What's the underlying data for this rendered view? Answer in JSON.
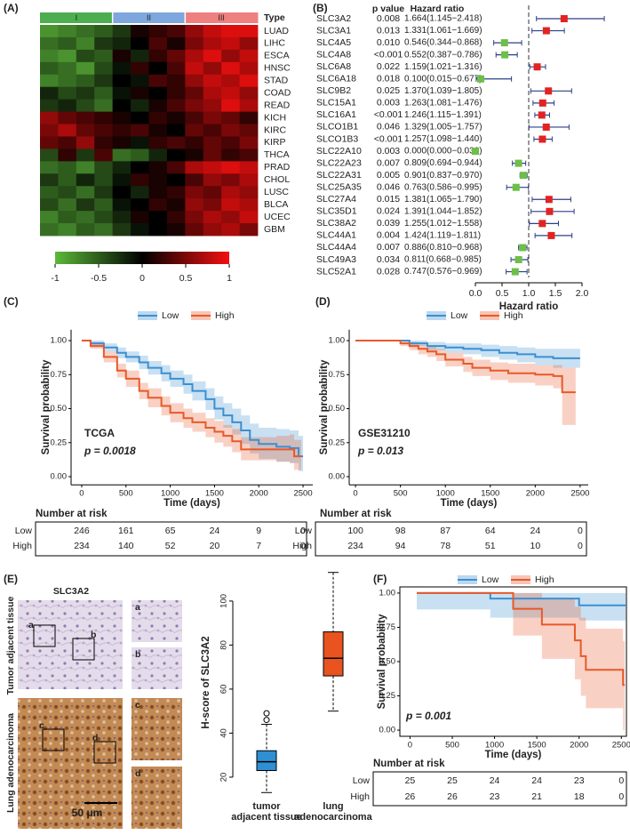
{
  "chart_data": [
    {
      "type": "heatmap",
      "panel": "(A)",
      "legend_title": "Type",
      "groups": [
        "I",
        "II",
        "III"
      ],
      "group_colors": [
        "#4cae4f",
        "#7ea7de",
        "#ef8080"
      ],
      "column_groups": [
        "I",
        "I",
        "I",
        "I",
        "II",
        "II",
        "II",
        "II",
        "III",
        "III",
        "III",
        "III"
      ],
      "rows": [
        "LUAD",
        "LIHC",
        "ESCA",
        "HNSC",
        "STAD",
        "COAD",
        "READ",
        "KICH",
        "KIRC",
        "KIRP",
        "THCA",
        "PRAD",
        "CHOL",
        "LUSC",
        "BLCA",
        "UCEC",
        "GBM"
      ],
      "highlight_index": 0,
      "highlight_color": "#e32222",
      "values": [
        [
          -0.8,
          -0.7,
          -0.6,
          -0.5,
          -0.3,
          0.1,
          0.2,
          0.3,
          0.6,
          0.8,
          0.9,
          0.9
        ],
        [
          -0.6,
          -0.5,
          -0.7,
          -0.3,
          -0.2,
          0.0,
          0.3,
          0.1,
          0.5,
          0.7,
          0.8,
          0.6
        ],
        [
          -0.7,
          -0.8,
          -0.4,
          -0.5,
          0.1,
          -0.2,
          0.2,
          0.4,
          0.7,
          0.9,
          0.6,
          0.8
        ],
        [
          -0.5,
          -0.6,
          -0.8,
          -0.4,
          -0.1,
          0.2,
          0.0,
          0.3,
          0.8,
          0.6,
          0.9,
          0.7
        ],
        [
          -0.7,
          -0.6,
          -0.5,
          -0.3,
          0.0,
          -0.1,
          0.3,
          0.2,
          0.6,
          0.8,
          0.7,
          0.9
        ],
        [
          -0.2,
          -0.4,
          -0.3,
          -0.5,
          -0.1,
          0.1,
          0.0,
          0.2,
          0.4,
          0.7,
          0.8,
          0.6
        ],
        [
          -0.3,
          -0.2,
          -0.4,
          -0.6,
          0.0,
          -0.2,
          0.1,
          0.3,
          0.5,
          0.6,
          0.9,
          0.7
        ],
        [
          0.6,
          0.4,
          0.3,
          0.2,
          0.1,
          0.0,
          0.2,
          0.1,
          0.3,
          0.5,
          0.4,
          0.2
        ],
        [
          0.5,
          0.7,
          0.4,
          0.3,
          0.2,
          0.3,
          0.1,
          0.0,
          0.4,
          0.3,
          0.5,
          0.4
        ],
        [
          0.4,
          0.3,
          0.6,
          0.2,
          0.1,
          -0.1,
          0.2,
          0.3,
          0.2,
          0.4,
          0.3,
          0.5
        ],
        [
          -0.4,
          0.2,
          -0.3,
          0.3,
          -0.6,
          -0.5,
          -0.2,
          0.0,
          0.1,
          0.4,
          0.2,
          0.3
        ],
        [
          -0.6,
          -0.5,
          -0.7,
          -0.4,
          -0.2,
          0.0,
          0.1,
          0.3,
          0.7,
          0.8,
          0.9,
          0.8
        ],
        [
          -0.3,
          -0.5,
          -0.2,
          -0.4,
          -0.1,
          0.2,
          0.1,
          0.0,
          0.3,
          0.6,
          0.5,
          0.7
        ],
        [
          -0.5,
          -0.4,
          -0.6,
          -0.3,
          0.0,
          -0.2,
          0.1,
          0.2,
          0.5,
          0.4,
          0.7,
          0.6
        ],
        [
          -0.4,
          -0.6,
          -0.3,
          -0.5,
          -0.1,
          0.0,
          0.2,
          0.1,
          0.6,
          0.5,
          0.8,
          0.7
        ],
        [
          -0.7,
          -0.5,
          -0.6,
          -0.4,
          -0.2,
          0.1,
          0.0,
          0.2,
          0.5,
          0.7,
          0.6,
          0.8
        ],
        [
          -0.6,
          -0.7,
          -0.5,
          -0.6,
          -0.3,
          -0.1,
          0.0,
          0.1,
          0.4,
          0.6,
          0.7,
          0.5
        ]
      ],
      "colorscale": [
        "#5cb83a",
        "#000000",
        "#f41010"
      ],
      "zlim": [
        -1,
        1
      ],
      "colorbar_ticks": [
        -1,
        -0.5,
        0,
        0.5,
        1
      ]
    },
    {
      "type": "forest",
      "panel": "(B)",
      "p_header": "p value",
      "hr_header": "Hazard ratio",
      "genes": [
        "SLC3A2",
        "SLC3A1",
        "SLC4A5",
        "SLC4A8",
        "SLC6A8",
        "SLC6A18",
        "SLC9B2",
        "SLC15A1",
        "SLC16A1",
        "SLCO1B1",
        "SLCO1B3",
        "SLC22A10",
        "SLC22A23",
        "SLC22A31",
        "SLC25A35",
        "SLC27A4",
        "SLC35D1",
        "SLC38A2",
        "SLC44A1",
        "SLC44A4",
        "SLC49A3",
        "SLC52A1"
      ],
      "highlight_index": 0,
      "highlight_color": "#e32222",
      "p_values": [
        "0.008",
        "0.013",
        "0.010",
        "<0.001",
        "0.022",
        "0.018",
        "0.025",
        "0.003",
        "<0.001",
        "0.046",
        "<0.001",
        "0.003",
        "0.007",
        "0.005",
        "0.046",
        "0.015",
        "0.024",
        "0.039",
        "0.004",
        "0.007",
        "0.034",
        "0.028"
      ],
      "hr": [
        1.664,
        1.331,
        0.546,
        0.552,
        1.159,
        0.1,
        1.37,
        1.263,
        1.246,
        1.329,
        1.257,
        0.0,
        0.809,
        0.901,
        0.763,
        1.381,
        1.391,
        1.255,
        1.424,
        0.886,
        0.811,
        0.747
      ],
      "lower": [
        1.145,
        1.061,
        0.344,
        0.387,
        1.021,
        0.015,
        1.039,
        1.081,
        1.115,
        1.005,
        1.098,
        0.0,
        0.694,
        0.837,
        0.586,
        1.065,
        1.044,
        1.012,
        1.119,
        0.81,
        0.668,
        0.576
      ],
      "upper": [
        2.418,
        1.669,
        0.868,
        0.786,
        1.316,
        0.677,
        1.805,
        1.476,
        1.391,
        1.757,
        1.44,
        0.036,
        0.944,
        0.97,
        0.995,
        1.79,
        1.852,
        1.558,
        1.811,
        0.968,
        0.985,
        0.969
      ],
      "hr_labels": [
        "1.664(1.145−2.418)",
        "1.331(1.061−1.669)",
        "0.546(0.344−0.868)",
        "0.552(0.387−0.786)",
        "1.159(1.021−1.316)",
        "0.100(0.015−0.677)",
        "1.370(1.039−1.805)",
        "1.263(1.081−1.476)",
        "1.246(1.115−1.391)",
        "1.329(1.005−1.757)",
        "1.257(1.098−1.440)",
        "0.000(0.000−0.036)",
        "0.809(0.694−0.944)",
        "0.901(0.837−0.970)",
        "0.763(0.586−0.995)",
        "1.381(1.065−1.790)",
        "1.391(1.044−1.852)",
        "1.255(1.012−1.558)",
        "1.424(1.119−1.811)",
        "0.886(0.810−0.968)",
        "0.811(0.668−0.985)",
        "0.747(0.576−0.969)"
      ],
      "reference": 1,
      "color_above": "#e32222",
      "color_below": "#6cbf47",
      "ci_color": "#2d3f86",
      "xlim": [
        -0.05,
        2.45
      ],
      "xticks": [
        {
          "value": 0,
          "label": "0.0"
        },
        {
          "value": 0.5,
          "label": "0.5"
        },
        {
          "value": 1,
          "label": "1.0"
        },
        {
          "value": 1.5,
          "label": "1.5"
        },
        {
          "value": 2,
          "label": "2.0"
        }
      ],
      "xlabel": "Hazard ratio"
    },
    {
      "type": "km",
      "panel": "(C)",
      "ylabel": "Survival probability",
      "xlabel": "Time (days)",
      "annotation": "TCGA",
      "p_text": "p = 0.0018",
      "frame": false,
      "xlim": [
        -120,
        2610
      ],
      "xticks": [
        0,
        500,
        1000,
        1500,
        2000,
        2500
      ],
      "ylim": [
        -0.06,
        1.08
      ],
      "yticks": [
        {
          "value": 0,
          "label": "0.00"
        },
        {
          "value": 0.25,
          "label": "0.25"
        },
        {
          "value": 0.5,
          "label": "0.50"
        },
        {
          "value": 0.75,
          "label": "0.75"
        },
        {
          "value": 1,
          "label": "1.00"
        }
      ],
      "series": [
        {
          "name": "Low",
          "color": "#3b8fd1",
          "x": [
            0,
            100,
            250,
            400,
            500,
            650,
            750,
            900,
            1000,
            1150,
            1250,
            1400,
            1500,
            1600,
            1700,
            1800,
            1900,
            2000,
            2200,
            2350,
            2450,
            2500
          ],
          "values": [
            1.0,
            0.98,
            0.95,
            0.91,
            0.88,
            0.84,
            0.8,
            0.76,
            0.72,
            0.68,
            0.63,
            0.57,
            0.5,
            0.45,
            0.4,
            0.34,
            0.27,
            0.24,
            0.22,
            0.21,
            0.15,
            0.15
          ],
          "lower": [
            1.0,
            0.96,
            0.92,
            0.87,
            0.84,
            0.79,
            0.75,
            0.7,
            0.66,
            0.61,
            0.56,
            0.49,
            0.42,
            0.36,
            0.31,
            0.24,
            0.17,
            0.13,
            0.11,
            0.1,
            0.04,
            0.04
          ],
          "upper": [
            1.0,
            1.0,
            0.98,
            0.95,
            0.92,
            0.89,
            0.85,
            0.82,
            0.78,
            0.75,
            0.7,
            0.65,
            0.59,
            0.54,
            0.5,
            0.45,
            0.39,
            0.36,
            0.35,
            0.34,
            0.3,
            0.3
          ]
        },
        {
          "name": "High",
          "color": "#e8592a",
          "x": [
            0,
            100,
            250,
            400,
            500,
            650,
            750,
            900,
            1000,
            1150,
            1250,
            1400,
            1500,
            1600,
            1700,
            1800,
            2000,
            2200,
            2350,
            2400,
            2480
          ],
          "values": [
            1.0,
            0.96,
            0.88,
            0.78,
            0.72,
            0.63,
            0.58,
            0.52,
            0.47,
            0.43,
            0.4,
            0.36,
            0.33,
            0.3,
            0.26,
            0.2,
            0.2,
            0.2,
            0.2,
            0.15,
            0.15
          ],
          "lower": [
            1.0,
            0.94,
            0.84,
            0.73,
            0.66,
            0.57,
            0.51,
            0.45,
            0.4,
            0.36,
            0.33,
            0.29,
            0.25,
            0.22,
            0.18,
            0.12,
            0.12,
            0.11,
            0.1,
            0.05,
            0.05
          ],
          "upper": [
            1.0,
            0.99,
            0.92,
            0.83,
            0.78,
            0.69,
            0.65,
            0.59,
            0.54,
            0.5,
            0.47,
            0.43,
            0.41,
            0.38,
            0.35,
            0.29,
            0.29,
            0.3,
            0.31,
            0.27,
            0.27
          ]
        }
      ],
      "risk_title": "Number at risk",
      "risk": [
        [
          246,
          161,
          65,
          24,
          9,
          0
        ],
        [
          234,
          140,
          52,
          20,
          7,
          0
        ]
      ]
    },
    {
      "type": "km",
      "panel": "(D)",
      "ylabel": "Survival probability",
      "xlabel": "Time (days)",
      "annotation": "GSE31210",
      "p_text": "p = 0.013",
      "frame": false,
      "xlim": [
        -70,
        2590
      ],
      "xticks": [
        0,
        500,
        1000,
        1500,
        2000,
        2500
      ],
      "ylim": [
        -0.06,
        1.08
      ],
      "yticks": [
        {
          "value": 0,
          "label": "0.00"
        },
        {
          "value": 0.25,
          "label": "0.25"
        },
        {
          "value": 0.5,
          "label": "0.50"
        },
        {
          "value": 0.75,
          "label": "0.75"
        },
        {
          "value": 1,
          "label": "1.00"
        }
      ],
      "series": [
        {
          "name": "Low",
          "color": "#3b8fd1",
          "x": [
            0,
            600,
            800,
            1000,
            1200,
            1400,
            1600,
            1800,
            2000,
            2200,
            2500
          ],
          "values": [
            1.0,
            0.98,
            0.96,
            0.95,
            0.94,
            0.93,
            0.91,
            0.9,
            0.88,
            0.87,
            0.87
          ],
          "lower": [
            1.0,
            0.96,
            0.93,
            0.91,
            0.9,
            0.88,
            0.86,
            0.84,
            0.82,
            0.8,
            0.8
          ],
          "upper": [
            1.0,
            1.0,
            0.99,
            0.98,
            0.98,
            0.97,
            0.96,
            0.95,
            0.94,
            0.94,
            0.94
          ]
        },
        {
          "name": "High",
          "color": "#e8592a",
          "x": [
            0,
            500,
            600,
            700,
            800,
            900,
            1000,
            1200,
            1300,
            1500,
            1700,
            2000,
            2200,
            2300,
            2450
          ],
          "values": [
            1.0,
            0.98,
            0.96,
            0.94,
            0.92,
            0.9,
            0.86,
            0.83,
            0.8,
            0.78,
            0.76,
            0.75,
            0.74,
            0.62,
            0.62
          ],
          "lower": [
            1.0,
            0.96,
            0.93,
            0.9,
            0.88,
            0.85,
            0.81,
            0.77,
            0.74,
            0.71,
            0.69,
            0.67,
            0.65,
            0.38,
            0.38
          ],
          "upper": [
            1.0,
            1.0,
            0.99,
            0.97,
            0.96,
            0.94,
            0.91,
            0.88,
            0.86,
            0.84,
            0.83,
            0.82,
            0.82,
            0.8,
            0.8
          ]
        }
      ],
      "risk_title": "Number at risk",
      "risk": [
        [
          100,
          98,
          87,
          64,
          24,
          0
        ],
        [
          234,
          94,
          78,
          51,
          10,
          0
        ]
      ]
    },
    {
      "type": "box",
      "panel": "(E)",
      "image_title": "SLC3A2",
      "image_rows": [
        "Tumor adjacent tissue",
        "Lung adenocarcinoma"
      ],
      "insets": [
        "a",
        "b",
        "c",
        "d"
      ],
      "scale_bar": "50 μm",
      "ylabel": "H-score of  SLC3A2",
      "ylim": [
        11.5,
        114.5
      ],
      "yticks": [
        20,
        40,
        60,
        80,
        100
      ],
      "categories": [
        [
          "tumor",
          "adjacent tissue"
        ],
        [
          "lung",
          "adenocarcinoma"
        ]
      ],
      "boxes": [
        {
          "min": 13,
          "q1": 23,
          "median": 27,
          "q3": 32,
          "max": 44,
          "outliers": [
            46,
            49
          ],
          "color": "#2f8fd3"
        },
        {
          "min": 50,
          "q1": 66,
          "median": 74,
          "q3": 86,
          "max": 113,
          "color": "#e8531f"
        }
      ]
    },
    {
      "type": "km",
      "panel": "(F)",
      "ylabel": "Survival probability",
      "xlabel": "Time (days)",
      "p_text": "p = 0.001",
      "frame": true,
      "xlim": [
        -120,
        2560
      ],
      "xticks": [
        0,
        500,
        1000,
        1500,
        2000,
        2500
      ],
      "ylim": [
        -0.045,
        1.045
      ],
      "yticks": [
        {
          "value": 0,
          "label": "0.00"
        },
        {
          "value": 0.25,
          "label": "0.25"
        },
        {
          "value": 0.5,
          "label": "0.50"
        },
        {
          "value": 0.75,
          "label": "0.75"
        },
        {
          "value": 1,
          "label": "1.00"
        }
      ],
      "series": [
        {
          "name": "Low",
          "color": "#3b8fd1",
          "x": [
            80,
            950,
            2000,
            2550
          ],
          "values": [
            1.0,
            0.96,
            0.91,
            0.91
          ],
          "lower": [
            0.88,
            0.82,
            0.8,
            0.8
          ],
          "upper": [
            1.0,
            1.0,
            1.0,
            1.0
          ]
        },
        {
          "name": "High",
          "color": "#e8592a",
          "x": [
            80,
            1220,
            1560,
            1950,
            2020,
            2080,
            2520,
            2540
          ],
          "values": [
            1.0,
            0.885,
            0.77,
            0.655,
            0.54,
            0.44,
            0.33,
            0.33
          ],
          "lower": [
            1.0,
            0.69,
            0.52,
            0.37,
            0.25,
            0.16,
            0.0,
            0.0
          ],
          "upper": [
            1.0,
            1.0,
            0.96,
            0.9,
            0.82,
            0.74,
            0.65,
            0.65
          ]
        }
      ],
      "risk_title": "Number at risk",
      "risk": [
        [
          25,
          25,
          24,
          24,
          23,
          0
        ],
        [
          26,
          26,
          23,
          21,
          18,
          0
        ]
      ]
    }
  ]
}
